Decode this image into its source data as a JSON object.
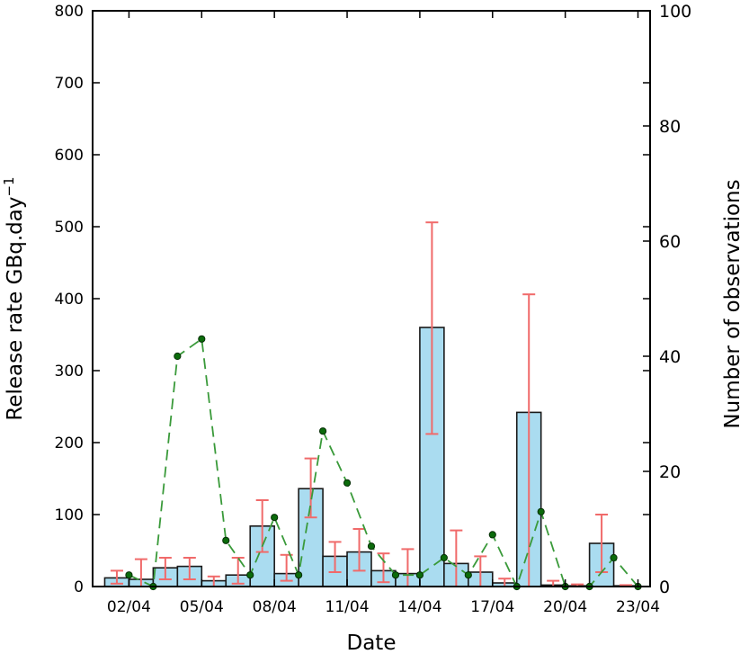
{
  "chart_data": {
    "type": "bar",
    "xlabel": "Date",
    "ylabel": "Release rate GBq.day",
    "ylabel_superscript": "−1",
    "y2label": "Number of observations",
    "ylim": [
      0,
      800
    ],
    "y2lim": [
      0,
      100
    ],
    "yticks": [
      0,
      100,
      200,
      300,
      400,
      500,
      600,
      700,
      800
    ],
    "y2ticks": [
      0,
      20,
      40,
      60,
      80,
      100
    ],
    "xlim": [
      -0.5,
      22.5
    ],
    "xtick_positions": [
      1,
      4,
      7,
      10,
      13,
      16,
      19,
      22
    ],
    "xtick_labels": [
      "02/04",
      "05/04",
      "08/04",
      "11/04",
      "14/04",
      "17/04",
      "20/04",
      "23/04"
    ],
    "colors": {
      "bar_fill": "#aadcf0",
      "bar_edge": "#1a1a1a",
      "error_bar": "#f06a6a",
      "obs_line": "#3a9a3a",
      "obs_marker": "#0b6b0b"
    },
    "bars": {
      "name": "Release rate",
      "x": [
        0.5,
        1.5,
        2.5,
        3.5,
        4.5,
        5.5,
        6.5,
        7.5,
        8.5,
        9.5,
        10.5,
        11.5,
        12.5,
        13.5,
        14.5,
        15.5,
        16.5,
        17.5,
        18.5,
        19.5,
        20.5,
        21.5
      ],
      "values": [
        12,
        10,
        26,
        28,
        8,
        16,
        84,
        18,
        136,
        42,
        48,
        22,
        18,
        360,
        32,
        20,
        5,
        242,
        2,
        1,
        60,
        1
      ],
      "err_low": [
        8,
        10,
        16,
        18,
        8,
        12,
        36,
        10,
        40,
        22,
        26,
        16,
        18,
        148,
        32,
        20,
        5,
        242,
        2,
        1,
        40,
        1
      ],
      "err_high": [
        10,
        28,
        14,
        12,
        6,
        24,
        36,
        26,
        42,
        20,
        32,
        24,
        34,
        146,
        46,
        22,
        6,
        164,
        6,
        2,
        40,
        1
      ]
    },
    "observations": {
      "name": "Number of observations",
      "x": [
        1,
        2,
        3,
        4,
        5,
        6,
        7,
        8,
        9,
        10,
        11,
        12,
        13,
        14,
        15,
        16,
        17,
        18,
        19,
        20,
        21,
        22
      ],
      "values": [
        2,
        0,
        40,
        43,
        8,
        2,
        12,
        2,
        27,
        18,
        7,
        2,
        2,
        5,
        2,
        9,
        0,
        13,
        0,
        0,
        5,
        0
      ]
    }
  }
}
